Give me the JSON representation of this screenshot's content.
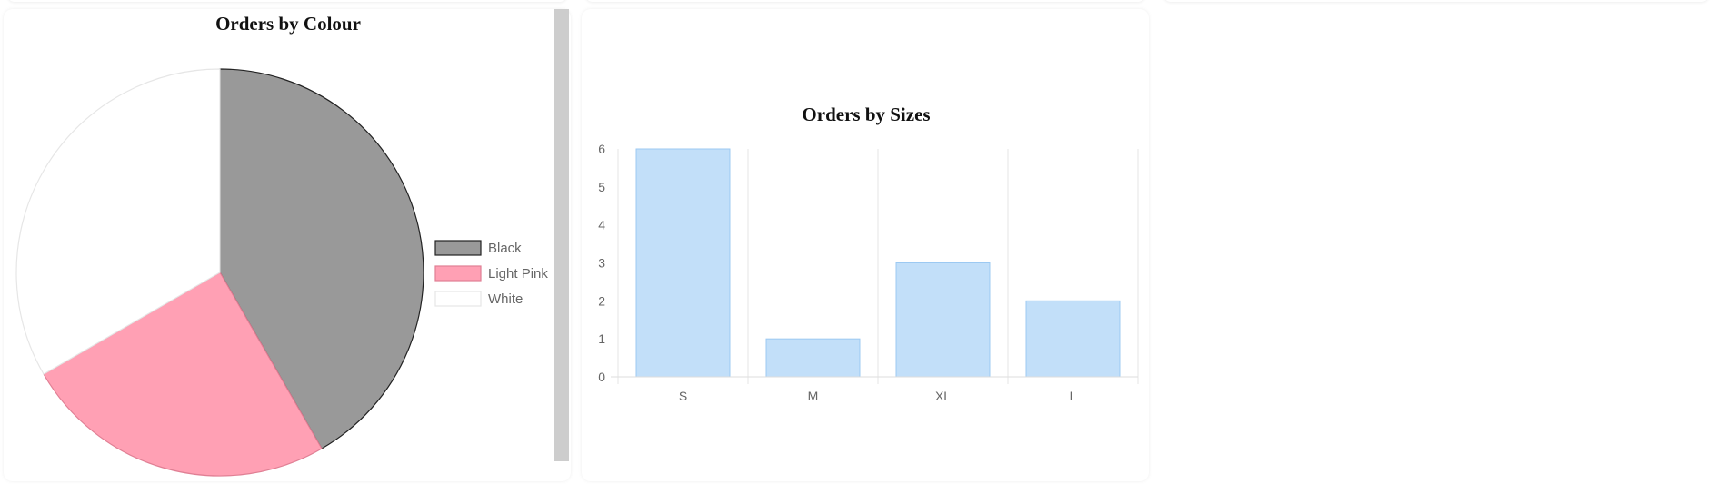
{
  "chart_data": [
    {
      "type": "pie",
      "title": "Orders by Colour",
      "categories": [
        "Black",
        "Light Pink",
        "White"
      ],
      "values": [
        5,
        3,
        4
      ],
      "colors": [
        "#999999",
        "#ffa0b4",
        "#ffffff"
      ],
      "border_colors": [
        "#222222",
        "#e07f94",
        "#e6e6e6"
      ],
      "legend": "right"
    },
    {
      "type": "bar",
      "title": "Orders by Sizes",
      "categories": [
        "S",
        "M",
        "XL",
        "L"
      ],
      "values": [
        6,
        1,
        3,
        2
      ],
      "ylim": [
        0,
        6
      ],
      "yticks": [
        "0",
        "1",
        "2",
        "3",
        "4",
        "5",
        "6"
      ],
      "bar_color": "#c2dff9",
      "bar_border": "#9cc9f2",
      "grid": true
    }
  ]
}
